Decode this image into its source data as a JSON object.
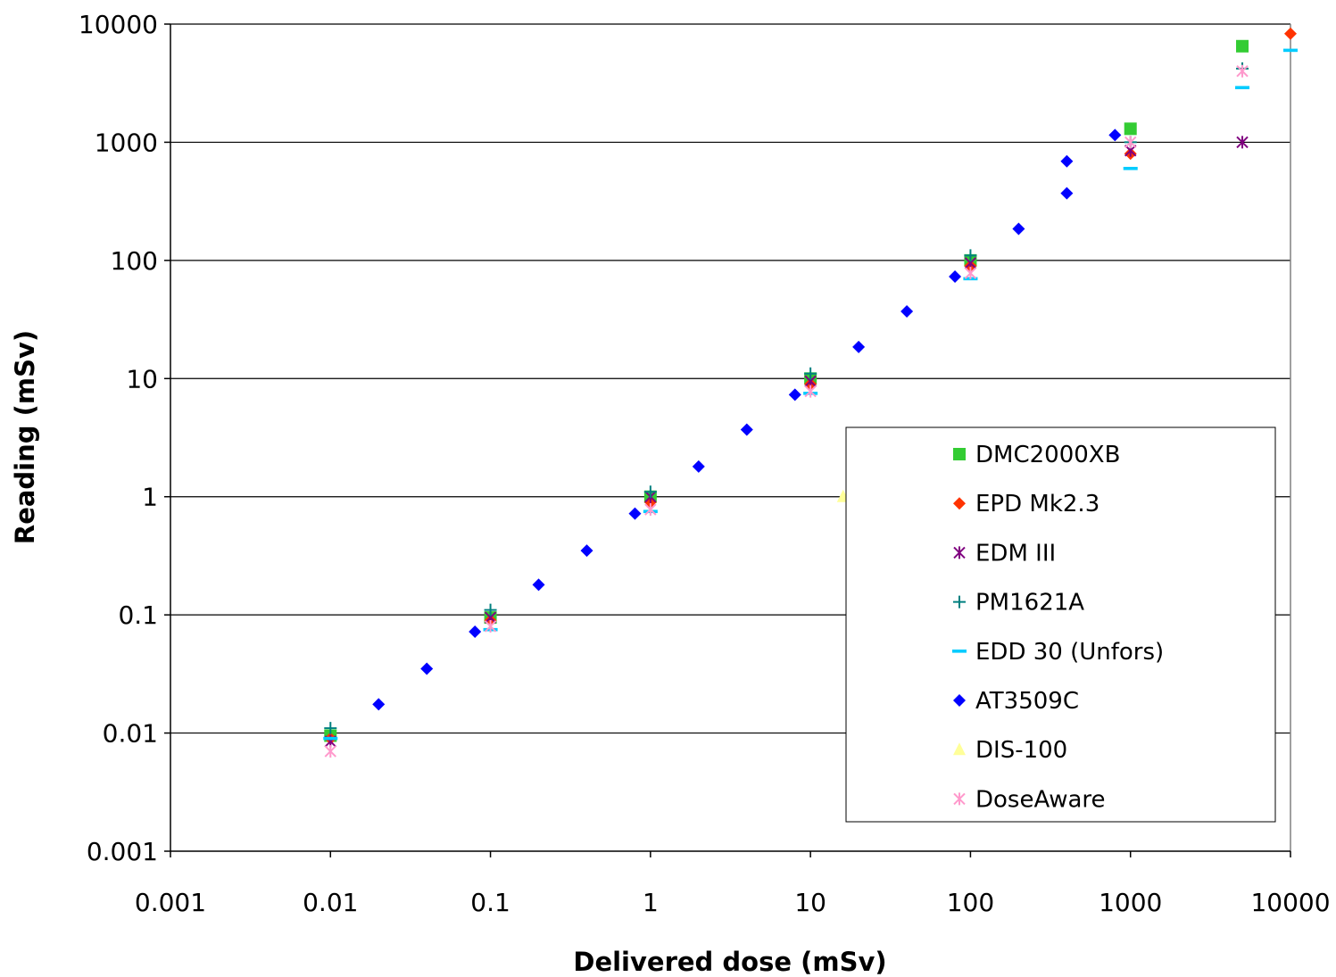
{
  "chart_data": {
    "type": "scatter",
    "title": "",
    "xlabel": "Delivered dose (mSv)",
    "ylabel": "Reading (mSv)",
    "xscale": "log",
    "yscale": "log",
    "xlim": [
      0.001,
      10000
    ],
    "ylim": [
      0.001,
      10000
    ],
    "xticks": [
      0.001,
      0.01,
      0.1,
      1,
      10,
      100,
      1000,
      10000
    ],
    "xtick_labels": [
      "0.001",
      "0.01",
      "0.1",
      "1",
      "10",
      "100",
      "1000",
      "10000"
    ],
    "yticks": [
      0.001,
      0.01,
      0.1,
      1,
      10,
      100,
      1000,
      10000
    ],
    "ytick_labels": [
      "0.001",
      "0.01",
      "0.1",
      "1",
      "10",
      "100",
      "1000",
      "10000"
    ],
    "grid": "horizontal major gridlines",
    "legend_position": "bottom-right inside plot",
    "series": [
      {
        "name": "DMC2000XB",
        "marker": "square",
        "color": "#33cc33",
        "points": [
          [
            0.01,
            0.0095
          ],
          [
            0.1,
            0.095
          ],
          [
            1,
            1.0
          ],
          [
            10,
            10
          ],
          [
            100,
            100
          ],
          [
            1000,
            1300
          ],
          [
            5000,
            6500
          ]
        ]
      },
      {
        "name": "EPD Mk2.3",
        "marker": "diamond",
        "color": "#ff3300",
        "points": [
          [
            0.01,
            0.009
          ],
          [
            0.1,
            0.09
          ],
          [
            1,
            0.9
          ],
          [
            10,
            9
          ],
          [
            100,
            90
          ],
          [
            1000,
            800
          ],
          [
            10000,
            8300
          ]
        ]
      },
      {
        "name": "EDM III",
        "marker": "asterisk",
        "color": "#800080",
        "points": [
          [
            0.01,
            0.0085
          ],
          [
            0.1,
            0.095
          ],
          [
            1,
            1.0
          ],
          [
            10,
            9.5
          ],
          [
            100,
            95
          ],
          [
            1000,
            850
          ],
          [
            5000,
            1000
          ]
        ]
      },
      {
        "name": "PM1621A",
        "marker": "plus",
        "color": "#008080",
        "points": [
          [
            0.01,
            0.011
          ],
          [
            0.1,
            0.11
          ],
          [
            1,
            1.1
          ],
          [
            10,
            11
          ],
          [
            100,
            110
          ],
          [
            1000,
            1000
          ],
          [
            5000,
            4200
          ]
        ]
      },
      {
        "name": "EDD 30 (Unfors)",
        "marker": "dash",
        "color": "#00ccff",
        "points": [
          [
            0.01,
            0.009
          ],
          [
            0.1,
            0.075
          ],
          [
            1,
            0.75
          ],
          [
            10,
            7.5
          ],
          [
            100,
            70
          ],
          [
            1000,
            600
          ],
          [
            5000,
            2900
          ],
          [
            10000,
            6000
          ]
        ]
      },
      {
        "name": "AT3509C",
        "marker": "diamond",
        "color": "#0000ff",
        "points": [
          [
            0.02,
            0.0175
          ],
          [
            0.04,
            0.035
          ],
          [
            0.08,
            0.072
          ],
          [
            0.2,
            0.18
          ],
          [
            0.4,
            0.35
          ],
          [
            0.8,
            0.72
          ],
          [
            2,
            1.8
          ],
          [
            4,
            3.7
          ],
          [
            8,
            7.3
          ],
          [
            20,
            18.5
          ],
          [
            40,
            37
          ],
          [
            80,
            73
          ],
          [
            200,
            185
          ],
          [
            400,
            370
          ],
          [
            400,
            690
          ],
          [
            800,
            1150
          ]
        ]
      },
      {
        "name": "DIS-100",
        "marker": "triangle",
        "color": "#ffff99",
        "points": [
          [
            16,
            1.0
          ]
        ]
      },
      {
        "name": "DoseAware",
        "marker": "asterisk",
        "color": "#ff99cc",
        "points": [
          [
            0.01,
            0.007
          ],
          [
            0.1,
            0.08
          ],
          [
            1,
            0.78
          ],
          [
            10,
            7.8
          ],
          [
            100,
            78
          ],
          [
            1000,
            1000
          ],
          [
            5000,
            4000
          ]
        ]
      }
    ]
  }
}
